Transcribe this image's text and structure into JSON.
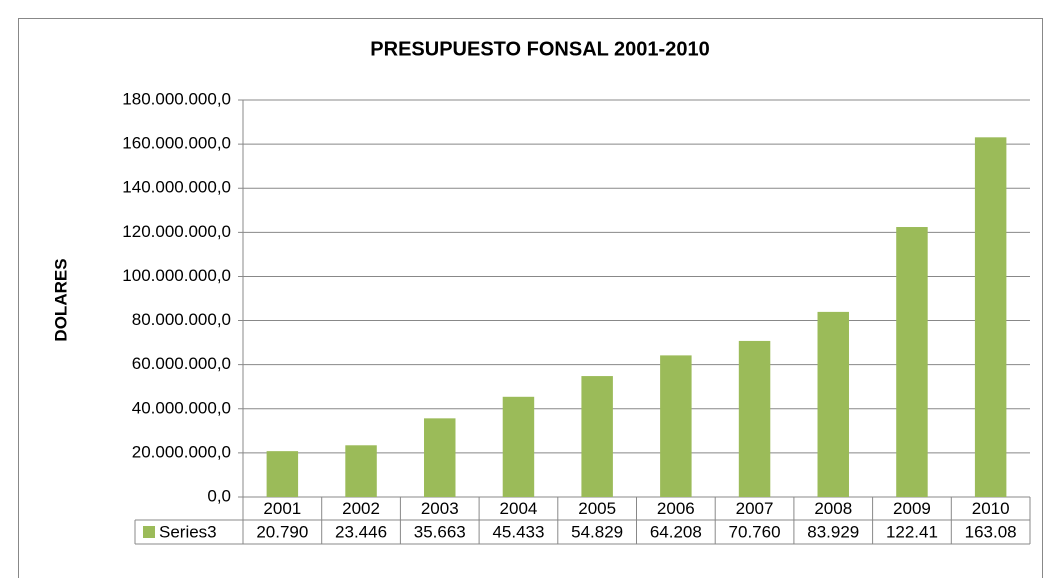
{
  "chart_data": {
    "type": "bar",
    "title": "PRESUPUESTO FONSAL 2001-2010",
    "y_label": "DOLARES",
    "categories": [
      "2001",
      "2002",
      "2003",
      "2004",
      "2005",
      "2006",
      "2007",
      "2008",
      "2009",
      "2010"
    ],
    "series": [
      {
        "name": "Series3",
        "color": "#9bbb59",
        "values": [
          20790000,
          23446000,
          35663000,
          45433000,
          54829000,
          64208000,
          70760000,
          83929000,
          122410000,
          163080000
        ],
        "value_labels": [
          "20.790",
          "23.446",
          "35.663",
          "45.433",
          "54.829",
          "64.208",
          "70.760",
          "83.929",
          "122.41",
          "163.08"
        ]
      }
    ],
    "ylim": [
      0,
      180000000
    ],
    "yticks": [
      {
        "value": 0,
        "label": "0,0"
      },
      {
        "value": 20000000,
        "label": "20.000.000,0"
      },
      {
        "value": 40000000,
        "label": "40.000.000,0"
      },
      {
        "value": 60000000,
        "label": "60.000.000,0"
      },
      {
        "value": 80000000,
        "label": "80.000.000,0"
      },
      {
        "value": 100000000,
        "label": "100.000.000,0"
      },
      {
        "value": 120000000,
        "label": "120.000.000,0"
      },
      {
        "value": 140000000,
        "label": "140.000.000,0"
      },
      {
        "value": 160000000,
        "label": "160.000.000,0"
      },
      {
        "value": 180000000,
        "label": "180.000.000,0"
      }
    ],
    "grid": true
  }
}
